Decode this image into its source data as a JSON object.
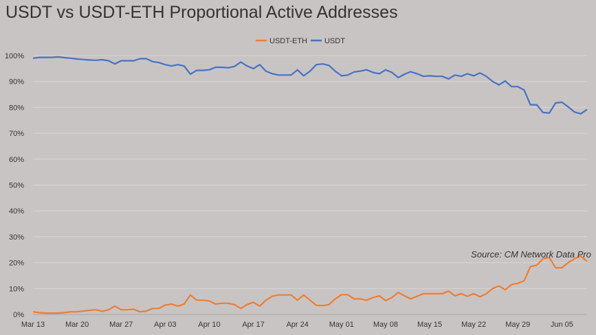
{
  "chart_data": {
    "type": "line",
    "title": "USDT vs USDT-ETH Proportional Active Addresses",
    "source": "Source: CM Network Data Pro",
    "xlabel": "",
    "ylabel": "",
    "ylim": [
      0,
      100
    ],
    "grid": true,
    "legend_position": "top",
    "x_tick_labels": [
      "Mar 13",
      "Mar 20",
      "Mar 27",
      "Apr 03",
      "Apr 10",
      "Apr 17",
      "Apr 24",
      "May 01",
      "May 08",
      "May 15",
      "May 22",
      "May 29",
      "Jun 05"
    ],
    "y_tick_labels": [
      "0%",
      "10%",
      "20%",
      "30%",
      "40%",
      "50%",
      "60%",
      "70%",
      "80%",
      "90%",
      "100%"
    ],
    "series": [
      {
        "name": "USDT-ETH",
        "color": "#ed7d31",
        "values": [
          1,
          0.7,
          0.5,
          0.5,
          0.5,
          0.7,
          1,
          1,
          1.3,
          1.6,
          1.8,
          1.2,
          1.8,
          3.2,
          1.8,
          1.8,
          2,
          1,
          1.3,
          2.3,
          2.3,
          3.6,
          4,
          3.2,
          4,
          7.5,
          5.5,
          5.5,
          5.2,
          4,
          4.3,
          4.3,
          3.8,
          2.3,
          3.8,
          4.7,
          3.2,
          5.5,
          7,
          7.5,
          7.5,
          7.5,
          5.5,
          7.5,
          5.5,
          3.5,
          3.4,
          3.8,
          6,
          7.6,
          7.6,
          6,
          6,
          5.5,
          6.5,
          7.2,
          5.3,
          6.5,
          8.5,
          7.2,
          6,
          7,
          8,
          8,
          8,
          8,
          9,
          7.2,
          8,
          7,
          8,
          6.8,
          8,
          10,
          11,
          9.5,
          11.5,
          12,
          13,
          18.5,
          19,
          21.5,
          22,
          18,
          18,
          20,
          21.5,
          22.5,
          20.5
        ]
      },
      {
        "name": "USDT",
        "color": "#4472c4",
        "values": [
          99,
          99.3,
          99.3,
          99.3,
          99.5,
          99.2,
          99,
          98.7,
          98.5,
          98.3,
          98.2,
          98.4,
          98,
          96.8,
          98,
          98,
          98,
          98.8,
          98.8,
          97.7,
          97.3,
          96.5,
          96,
          96.5,
          96,
          92.8,
          94.3,
          94.3,
          94.5,
          95.5,
          95.5,
          95.3,
          95.8,
          97.5,
          96,
          95,
          96.5,
          94,
          93,
          92.5,
          92.5,
          92.5,
          94.5,
          92.2,
          94,
          96.5,
          96.8,
          96.2,
          94,
          92.2,
          92.5,
          93.7,
          94,
          94.5,
          93.5,
          93,
          94.5,
          93.5,
          91.5,
          92.8,
          93.8,
          93,
          92,
          92.2,
          92,
          92,
          91,
          92.5,
          92,
          93,
          92.2,
          93.3,
          92,
          90,
          88.7,
          90.2,
          88,
          88,
          86.7,
          81,
          81,
          78,
          77.8,
          81.7,
          82,
          80.2,
          78.2,
          77.5,
          79.2
        ]
      }
    ]
  }
}
